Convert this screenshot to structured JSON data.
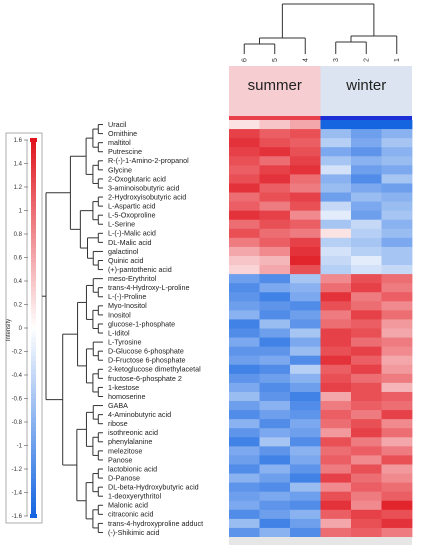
{
  "chart_data": {
    "type": "heatmap",
    "groups": [
      {
        "label": "summer",
        "color": "#f6cdd0",
        "samples": [
          "6",
          "5",
          "4"
        ]
      },
      {
        "label": "winter",
        "color": "#dbe4f0",
        "samples": [
          "3",
          "2",
          "1"
        ]
      }
    ],
    "columns": [
      "6",
      "5",
      "4",
      "3",
      "2",
      "1"
    ],
    "rows": [
      "Uracil",
      "Ornithine",
      "maltitol",
      "Putrescine",
      "R-(-)-1-Amino-2-propanol",
      "Glycine",
      "2-Oxoglutaric acid",
      "3-aminoisobutyric acid",
      "2-Hydroxyisobutyric acid",
      "L-Aspartic acid",
      "L-5-Oxoproline",
      "L-Serine",
      "L-(-)-Malic acid",
      "DL-Malic acid",
      "galactinol",
      "Quinic acid",
      "(+)-pantothenic acid",
      "meso-Erythritol",
      "trans-4-Hydroxy-L-proline",
      "L-(-)-Proline",
      "Myo-Inositol",
      "Inositol",
      "glucose-1-phosphate",
      "L-Iditol",
      "L-Tyrosine",
      "D-Glucose 6-phosphate",
      "D-Fructose 6-phosphate",
      "2-ketoglucose dimethylacetal",
      "fructose-6-phosphate 2",
      "1-kestose",
      "homoserine",
      "GABA",
      "4-Aminobutyric acid",
      "ribose",
      "isothreonic acid",
      "phenylalanine",
      "melezitose",
      "Panose",
      "lactobionic acid",
      "D-Panose",
      "DL-beta-Hydroxybutyric acid",
      "1-deoxyerythritol",
      "Malonic acid",
      "citraconic acid",
      "trans-4-hydroxyproline adduct",
      "(-)-Shikimic acid"
    ],
    "values": [
      [
        0.2,
        0.4,
        0.6,
        -1.6,
        -1.6,
        -1.6
      ],
      [
        1.3,
        1.1,
        1.2,
        -0.7,
        -1.0,
        -0.8
      ],
      [
        1.4,
        1.2,
        1.1,
        -0.5,
        -0.9,
        -0.6
      ],
      [
        1.3,
        1.4,
        1.2,
        -0.9,
        -1.1,
        -0.8
      ],
      [
        1.2,
        1.0,
        1.3,
        -0.6,
        -0.8,
        -0.7
      ],
      [
        1.1,
        1.3,
        1.4,
        -0.3,
        -1.0,
        -0.9
      ],
      [
        1.2,
        1.4,
        1.0,
        -0.8,
        -1.2,
        -0.6
      ],
      [
        1.4,
        1.1,
        0.9,
        -0.7,
        -0.9,
        -1.0
      ],
      [
        1.0,
        1.2,
        1.3,
        -1.0,
        -0.7,
        -0.8
      ],
      [
        1.1,
        0.9,
        1.2,
        -0.4,
        -0.9,
        -0.7
      ],
      [
        1.4,
        1.3,
        0.8,
        -0.2,
        -1.0,
        -0.6
      ],
      [
        1.0,
        1.2,
        1.1,
        -0.6,
        -0.4,
        -0.8
      ],
      [
        1.2,
        1.0,
        0.9,
        0.2,
        -0.5,
        -0.7
      ],
      [
        0.9,
        1.1,
        1.3,
        -0.5,
        -0.6,
        -0.9
      ],
      [
        0.6,
        0.8,
        1.4,
        -0.3,
        -0.5,
        -0.6
      ],
      [
        0.4,
        0.5,
        1.5,
        -0.4,
        -0.2,
        -0.6
      ],
      [
        0.3,
        0.6,
        1.2,
        -0.5,
        -0.3,
        -0.4
      ],
      [
        -1.0,
        -1.2,
        -0.6,
        0.8,
        1.2,
        1.0
      ],
      [
        -1.2,
        -0.9,
        -0.8,
        1.0,
        1.3,
        0.9
      ],
      [
        -1.1,
        -1.3,
        -0.9,
        1.4,
        0.9,
        1.1
      ],
      [
        -1.0,
        -1.1,
        -1.2,
        1.2,
        1.0,
        0.8
      ],
      [
        -0.8,
        -1.2,
        -1.0,
        0.9,
        1.3,
        1.0
      ],
      [
        -1.3,
        -0.7,
        -1.1,
        1.0,
        1.1,
        0.7
      ],
      [
        -1.2,
        -1.0,
        -0.6,
        1.3,
        1.2,
        0.6
      ],
      [
        -0.9,
        -1.3,
        -0.9,
        1.3,
        1.0,
        0.9
      ],
      [
        -1.1,
        -1.1,
        -0.7,
        1.2,
        1.3,
        0.8
      ],
      [
        -1.0,
        -0.9,
        -1.2,
        1.4,
        1.1,
        0.6
      ],
      [
        -1.3,
        -1.2,
        -0.5,
        1.1,
        1.3,
        0.7
      ],
      [
        -1.1,
        -1.0,
        -0.8,
        1.2,
        1.0,
        0.9
      ],
      [
        -0.9,
        -1.2,
        -1.0,
        1.3,
        1.2,
        0.5
      ],
      [
        -0.7,
        -1.1,
        -1.3,
        0.6,
        1.2,
        1.1
      ],
      [
        -1.0,
        -0.8,
        -1.2,
        0.9,
        1.1,
        1.0
      ],
      [
        -1.2,
        -1.0,
        -1.1,
        1.1,
        0.9,
        1.3
      ],
      [
        -0.8,
        -1.2,
        -0.9,
        1.0,
        1.2,
        0.8
      ],
      [
        -1.1,
        -0.9,
        -1.0,
        0.7,
        1.3,
        1.0
      ],
      [
        -1.3,
        -0.6,
        -1.2,
        1.2,
        0.9,
        0.6
      ],
      [
        -0.9,
        -1.1,
        -0.8,
        1.0,
        1.1,
        0.9
      ],
      [
        -1.0,
        -1.3,
        -0.9,
        1.1,
        0.8,
        1.2
      ],
      [
        -1.2,
        -0.8,
        -1.1,
        0.9,
        1.2,
        0.7
      ],
      [
        -0.8,
        -1.0,
        -1.3,
        1.3,
        1.0,
        0.8
      ],
      [
        -1.1,
        -1.2,
        -0.7,
        0.8,
        1.1,
        1.0
      ],
      [
        -1.0,
        -0.9,
        -1.0,
        1.2,
        0.9,
        1.1
      ],
      [
        -0.9,
        -1.1,
        -1.2,
        1.4,
        0.8,
        1.5
      ],
      [
        -1.2,
        -1.0,
        -0.8,
        1.1,
        1.3,
        1.2
      ],
      [
        -0.7,
        -1.3,
        -1.0,
        0.6,
        1.2,
        1.4
      ],
      [
        -1.1,
        -0.8,
        -1.2,
        1.0,
        1.1,
        0.9
      ]
    ],
    "color_scale": {
      "title": "Intensity",
      "min": -1.6,
      "max": 1.6,
      "ticks": [
        1.6,
        1.4,
        1.2,
        1,
        0.8,
        0.6,
        0.4,
        0.2,
        0,
        -0.2,
        -0.4,
        -0.6,
        -0.8,
        -1,
        -1.2,
        -1.4,
        -1.6
      ],
      "low_color": "#1565e0",
      "mid_color": "#ffffff",
      "high_color": "#e0151e"
    },
    "row_dendrogram": true,
    "column_dendrogram": true
  }
}
